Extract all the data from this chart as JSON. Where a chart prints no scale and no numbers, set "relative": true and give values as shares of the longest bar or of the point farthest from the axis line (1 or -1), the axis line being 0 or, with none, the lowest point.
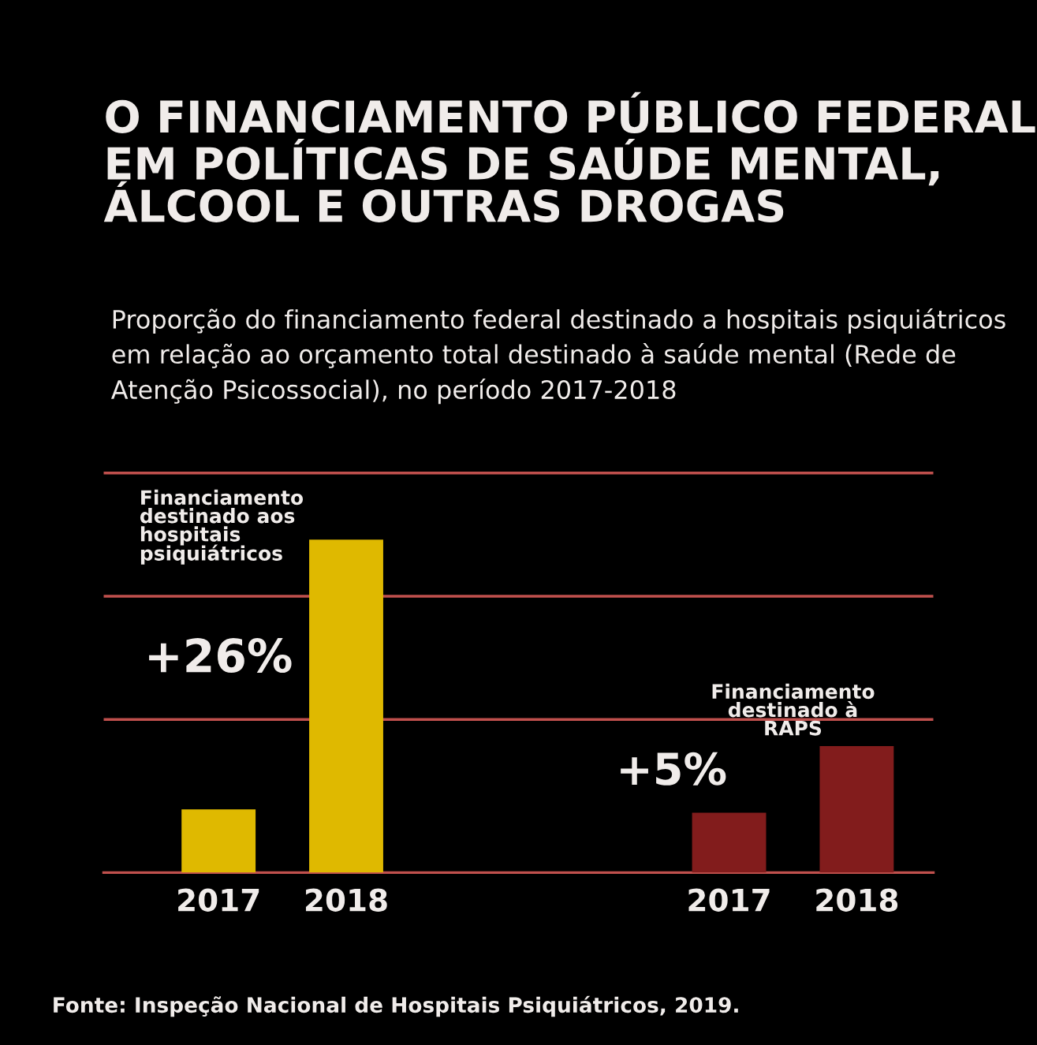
{
  "chart_data": {
    "type": "bar",
    "relative": true,
    "title": "O FINANCIAMENTO PÚBLICO FEDERAL EM POLÍTICAS DE SAÚDE MENTAL, ÁLCOOL E OUTRAS DROGAS",
    "subtitle": "Proporção do financiamento federal destinado a hospitais psiquiátricos em relação ao orçamento total destinado à saúde mental (Rede de Atenção Psicossocial), no período 2017-2018",
    "categories": [
      "2017",
      "2018",
      null,
      null,
      "2017",
      "2018"
    ],
    "series": [
      {
        "name": "Financiamento destinado aos hospitais psiquiátricos",
        "color": "#dfb900",
        "values": [
          0.19,
          1,
          null,
          null,
          null,
          null
        ]
      },
      {
        "name": "Financiamento destinado à RAPS",
        "color": "#821c1c",
        "values": [
          null,
          null,
          null,
          null,
          0.18,
          0.38
        ]
      }
    ],
    "ref_lines": [
      {
        "axis": "y",
        "value": 0.46,
        "color": "#c0504d"
      },
      {
        "axis": "y",
        "value": 0.83,
        "color": "#c0504d"
      },
      {
        "axis": "y",
        "value": 1.2,
        "color": "#c0504d"
      }
    ],
    "annotations": [
      "+26%",
      "+5%",
      "Fonte: Inspeção Nacional de Hospitais Psiquiátricos, 2019."
    ],
    "legend": false
  }
}
